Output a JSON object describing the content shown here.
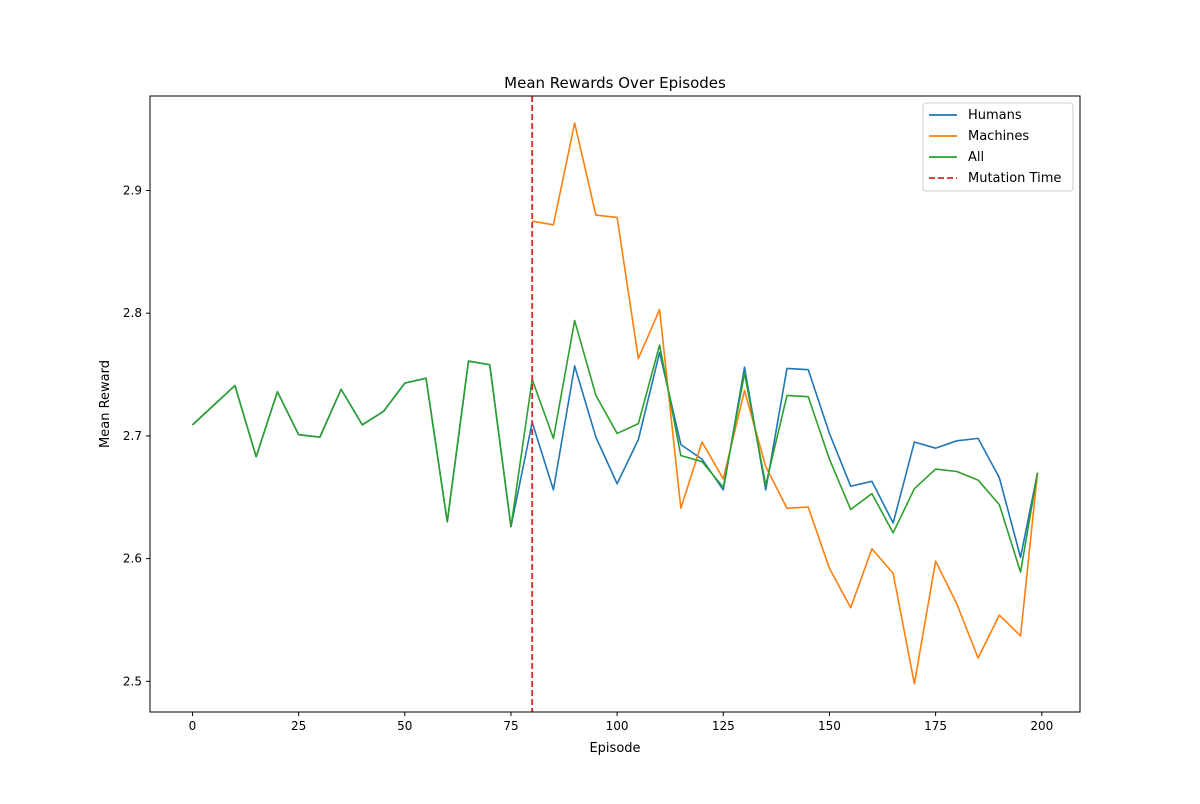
{
  "chart_data": {
    "type": "line",
    "title": "Mean Rewards Over Episodes",
    "xlabel": "Episode",
    "ylabel": "Mean Reward",
    "xlim": [
      -10,
      209
    ],
    "ylim": [
      2.475,
      2.977
    ],
    "xticks": [
      0,
      25,
      50,
      75,
      100,
      125,
      150,
      175,
      200
    ],
    "yticks": [
      2.5,
      2.6,
      2.7,
      2.8,
      2.9
    ],
    "ytick_labels": [
      "2.5",
      "2.6",
      "2.7",
      "2.8",
      "2.9"
    ],
    "grid": false,
    "legend_position": "top-right",
    "x": [
      0,
      5,
      10,
      15,
      20,
      25,
      30,
      35,
      40,
      45,
      50,
      55,
      60,
      65,
      70,
      75,
      80,
      85,
      90,
      95,
      100,
      105,
      110,
      115,
      120,
      125,
      130,
      135,
      140,
      145,
      150,
      155,
      160,
      165,
      170,
      175,
      180,
      185,
      190,
      195,
      199
    ],
    "series": [
      {
        "name": "Humans",
        "color": "#1f77b4",
        "values": [
          2.709,
          2.725,
          2.741,
          2.683,
          2.736,
          2.701,
          2.699,
          2.738,
          2.709,
          2.72,
          2.743,
          2.747,
          2.63,
          2.761,
          2.758,
          2.626,
          2.711,
          2.656,
          2.757,
          2.699,
          2.661,
          2.697,
          2.768,
          2.693,
          2.681,
          2.656,
          2.756,
          2.656,
          2.755,
          2.754,
          2.702,
          2.659,
          2.663,
          2.629,
          2.695,
          2.69,
          2.696,
          2.698,
          2.666,
          2.601,
          2.67
        ]
      },
      {
        "name": "Machines",
        "color": "#ff7f0e",
        "values": [
          null,
          null,
          null,
          null,
          null,
          null,
          null,
          null,
          null,
          null,
          null,
          null,
          null,
          null,
          null,
          null,
          2.875,
          2.872,
          2.955,
          2.88,
          2.878,
          2.763,
          2.803,
          2.641,
          2.695,
          2.665,
          2.737,
          2.675,
          2.641,
          2.642,
          2.592,
          2.56,
          2.608,
          2.588,
          2.498,
          2.598,
          2.563,
          2.519,
          2.554,
          2.537,
          2.67
        ]
      },
      {
        "name": "All",
        "color": "#2ca02c",
        "values": [
          2.709,
          2.725,
          2.741,
          2.683,
          2.736,
          2.701,
          2.699,
          2.738,
          2.709,
          2.72,
          2.743,
          2.747,
          2.63,
          2.761,
          2.758,
          2.626,
          2.746,
          2.698,
          2.794,
          2.733,
          2.702,
          2.71,
          2.774,
          2.684,
          2.679,
          2.658,
          2.751,
          2.66,
          2.733,
          2.732,
          2.681,
          2.64,
          2.653,
          2.621,
          2.657,
          2.673,
          2.671,
          2.664,
          2.644,
          2.589,
          2.67
        ]
      }
    ],
    "vline": {
      "name": "Mutation Time",
      "x": 80,
      "color": "#d62728",
      "style": "dashed"
    }
  }
}
